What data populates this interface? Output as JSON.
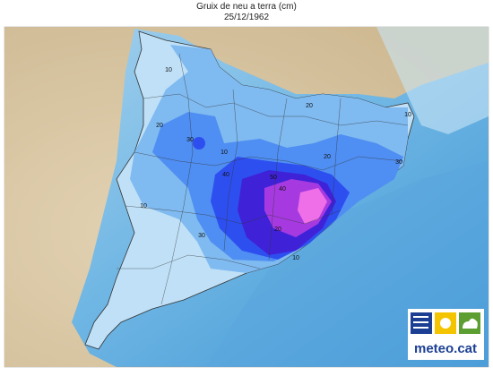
{
  "header": {
    "title": "Gruix de neu a terra (cm)",
    "date": "25/12/1962"
  },
  "map": {
    "contour_labels": [
      "10",
      "20",
      "20",
      "10",
      "30",
      "10",
      "20",
      "30",
      "40",
      "50",
      "40",
      "10",
      "30",
      "20",
      "10"
    ]
  },
  "logo": {
    "text": "meteo.cat"
  }
}
